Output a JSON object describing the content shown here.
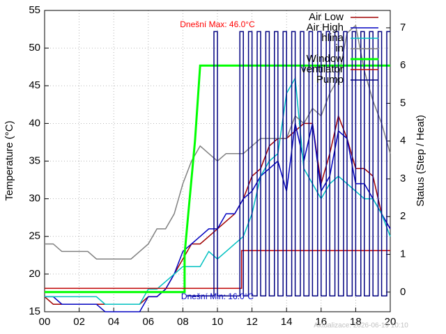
{
  "chart_data": {
    "type": "line",
    "y_label": "Temperature (°C)",
    "y2_label": "Status (Step / Heat)",
    "annotations": [
      {
        "text": "Dnešní Max: 46.0°C",
        "color": "#ff0000"
      },
      {
        "text": "Dnešní Min: 16.0°C",
        "color": "#0000c0"
      },
      {
        "text": "Aktualizace: 2026-06-19 10:10",
        "color": "#c0c0c0"
      }
    ],
    "xlim": [
      0,
      20
    ],
    "xticks": [
      {
        "value": 0,
        "label": "00"
      },
      {
        "value": 2,
        "label": "02"
      },
      {
        "value": 4,
        "label": "04"
      },
      {
        "value": 6,
        "label": "06"
      },
      {
        "value": 8,
        "label": "08"
      },
      {
        "value": 10,
        "label": "10"
      },
      {
        "value": 12,
        "label": "12"
      },
      {
        "value": 14,
        "label": "14"
      },
      {
        "value": 16,
        "label": "16"
      },
      {
        "value": 18,
        "label": "18"
      },
      {
        "value": 20,
        "label": "20"
      }
    ],
    "ylim": [
      15,
      55
    ],
    "yticks": [
      15,
      20,
      25,
      30,
      35,
      40,
      45,
      50,
      55
    ],
    "y2lim": [
      -0.52,
      7.46
    ],
    "y2ticks": [
      0,
      1,
      2,
      3,
      4,
      5,
      6,
      7
    ],
    "grid": true,
    "legend": "top-right",
    "x": [
      0,
      0.5,
      1,
      1.5,
      2,
      2.5,
      3,
      3.5,
      4,
      4.5,
      5,
      5.5,
      6,
      6.5,
      7,
      7.5,
      8,
      8.5,
      9,
      9.5,
      10,
      10.5,
      11,
      11.5,
      12,
      12.5,
      13,
      13.5,
      14,
      14.5,
      15,
      15.5,
      16,
      16.5,
      17,
      17.5,
      18,
      18.5,
      19,
      19.5,
      20
    ],
    "series": [
      {
        "name": "Air Low",
        "color": "#a00000",
        "values": [
          17,
          16,
          16,
          16,
          16,
          16,
          16,
          16,
          16,
          16,
          16,
          16,
          17,
          17,
          18,
          20,
          22,
          24,
          24,
          25,
          26,
          27,
          28,
          30,
          33,
          34,
          37,
          38,
          38,
          39,
          40,
          40,
          32,
          36,
          41,
          38,
          34,
          34,
          33,
          28,
          26
        ]
      },
      {
        "name": "Air High",
        "color": "#0000c0",
        "values": [
          17,
          17,
          16,
          16,
          16,
          16,
          16,
          15,
          15,
          15,
          15,
          15,
          17,
          17,
          18,
          20,
          23,
          24,
          25,
          26,
          26,
          28,
          28,
          30,
          31,
          33,
          34,
          35,
          31,
          40,
          35,
          40,
          31,
          33,
          39,
          38,
          32,
          32,
          30,
          28,
          26
        ]
      },
      {
        "name": "hlina",
        "color": "#00c0c0",
        "values": [
          17,
          17,
          17,
          17,
          17,
          17,
          17,
          16,
          16,
          16,
          16,
          16,
          18,
          18,
          19,
          20,
          21,
          21,
          21,
          23,
          22,
          23,
          24,
          25,
          28,
          33,
          35,
          36,
          44,
          46,
          34,
          32,
          30,
          32,
          33,
          32,
          31,
          30,
          30,
          28,
          25
        ]
      },
      {
        "name": "in",
        "color": "#808080",
        "values": [
          24,
          24,
          23,
          23,
          23,
          23,
          22,
          22,
          22,
          22,
          22,
          23,
          24,
          26,
          26,
          28,
          32,
          35,
          37,
          36,
          35,
          36,
          36,
          36,
          37,
          38,
          38,
          38,
          38,
          41,
          40,
          42,
          41,
          44,
          46,
          52,
          53,
          47,
          43,
          40,
          36
        ]
      },
      {
        "name": "Window",
        "color": "#00ff00",
        "axis": "y2",
        "bold": true,
        "x": [
          0,
          8.1,
          8.1,
          8.3,
          8.5,
          8.7,
          9,
          20
        ],
        "values": [
          0,
          0,
          1,
          2,
          3,
          4,
          6,
          6
        ]
      },
      {
        "name": "ventilator",
        "color": "#c00000",
        "axis": "y2",
        "x": [
          0,
          11.4,
          11.4,
          20
        ],
        "values": [
          0.1,
          0.1,
          1.1,
          1.1
        ]
      },
      {
        "name": "Pump",
        "color": "#000080",
        "axis": "y2",
        "x": [
          8.2,
          9.8,
          9.8,
          10,
          10,
          11.3,
          11.3,
          11.5,
          11.5,
          11.8,
          11.8,
          12,
          12,
          12.3,
          12.3,
          12.5,
          12.5,
          12.8,
          12.8,
          13,
          13,
          13.3,
          13.3,
          13.5,
          13.5,
          13.8,
          13.8,
          14,
          14,
          14.3,
          14.3,
          14.5,
          14.5,
          14.8,
          14.8,
          15,
          15,
          15.3,
          15.3,
          15.5,
          15.5,
          15.8,
          15.8,
          16,
          16,
          16.3,
          16.3,
          16.5,
          16.5,
          16.8,
          16.8,
          17,
          17,
          17.3,
          17.3,
          17.5,
          17.5,
          17.8,
          17.8,
          18,
          18,
          18.3,
          18.3,
          18.5,
          18.5,
          18.8,
          18.8,
          19,
          19,
          19.3,
          19.3,
          19.5,
          19.5,
          19.8,
          19.8,
          20
        ],
        "values": [
          -0.1,
          -0.1,
          6.9,
          6.9,
          -0.1,
          -0.1,
          6.9,
          6.9,
          -0.1,
          -0.1,
          6.9,
          6.9,
          -0.1,
          -0.1,
          6.9,
          6.9,
          -0.1,
          -0.1,
          6.9,
          6.9,
          -0.1,
          -0.1,
          6.9,
          6.9,
          -0.1,
          -0.1,
          6.9,
          6.9,
          -0.1,
          -0.1,
          6.9,
          6.9,
          -0.1,
          -0.1,
          6.9,
          6.9,
          -0.1,
          -0.1,
          6.9,
          6.9,
          -0.1,
          -0.1,
          6.9,
          6.9,
          -0.1,
          -0.1,
          6.9,
          6.9,
          -0.1,
          -0.1,
          6.9,
          6.9,
          -0.1,
          -0.1,
          6.9,
          6.9,
          -0.1,
          -0.1,
          6.9,
          6.9,
          -0.1,
          -0.1,
          6.9,
          6.9,
          -0.1,
          -0.1,
          6.9,
          6.9,
          -0.1,
          -0.1,
          6.9,
          6.9,
          -0.1,
          -0.1,
          6.9,
          6.9
        ]
      }
    ]
  }
}
